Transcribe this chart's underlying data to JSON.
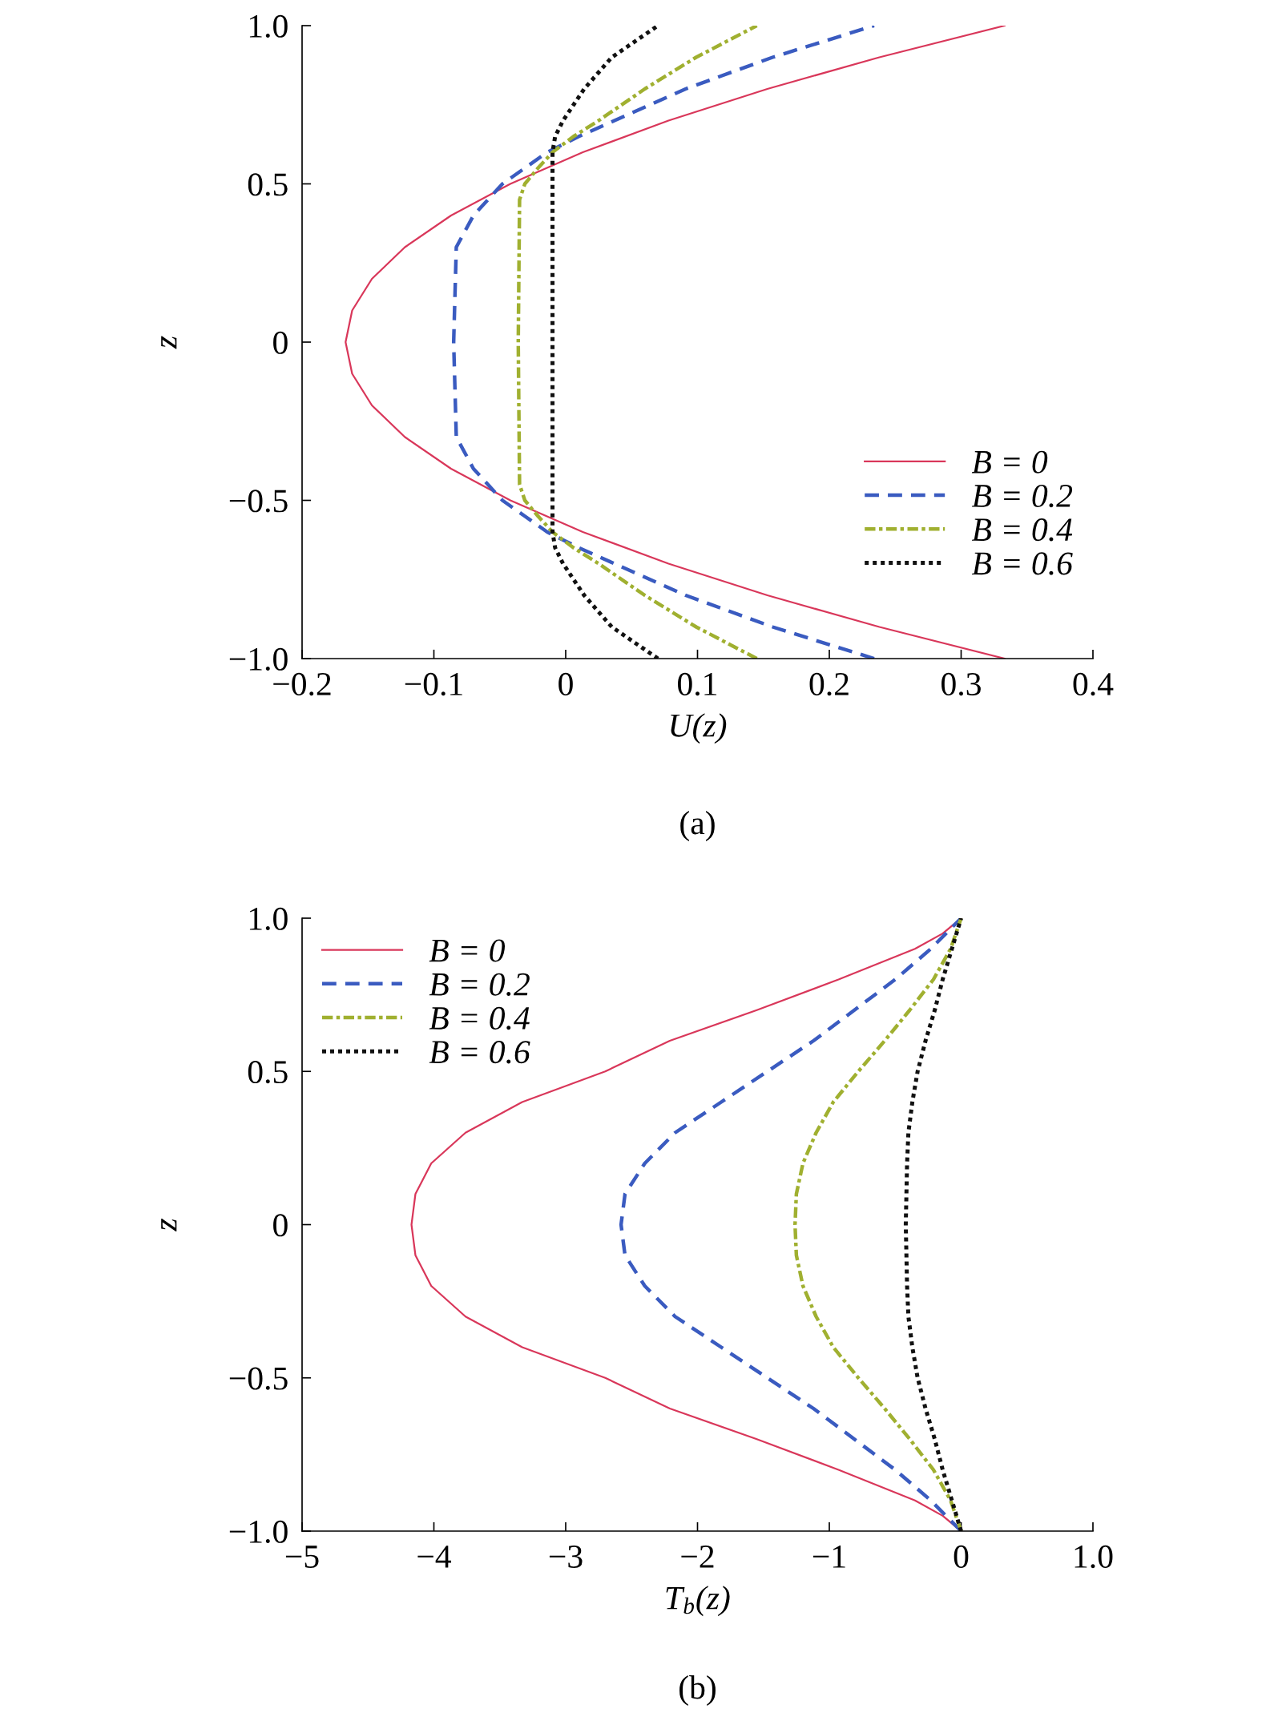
{
  "chart_data": [
    {
      "type": "line",
      "xlabel": "U(z)",
      "ylabel": "z",
      "annotations": [
        "(a)"
      ],
      "legend": "right",
      "grid": false,
      "xlim": [
        -0.2,
        0.4
      ],
      "ylim": [
        -1.0,
        1.0
      ],
      "xticks": [
        {
          "value": -0.2,
          "label": "−0.2"
        },
        {
          "value": -0.1,
          "label": "−0.1"
        },
        0,
        0.1,
        0.2,
        0.3,
        0.4
      ],
      "yticks": [
        {
          "value": -1.0,
          "label": "−1.0"
        },
        {
          "value": -0.5,
          "label": "−0.5"
        },
        0,
        0.5,
        {
          "value": 1.0,
          "label": "1.0"
        }
      ],
      "series": [
        {
          "name": "B = 0",
          "color": "#d9375a",
          "line_style": "solid",
          "x": [
            0.333,
            0.238,
            0.153,
            0.078,
            0.013,
            -0.042,
            -0.087,
            -0.122,
            -0.147,
            -0.162,
            -0.167,
            -0.162,
            -0.147,
            -0.122,
            -0.087,
            -0.042,
            0.013,
            0.078,
            0.153,
            0.238,
            0.333
          ],
          "values": [
            -1.0,
            -0.9,
            -0.8,
            -0.7,
            -0.6,
            -0.5,
            -0.4,
            -0.3,
            -0.2,
            -0.1,
            0,
            0.1,
            0.2,
            0.3,
            0.4,
            0.5,
            0.6,
            0.7,
            0.8,
            0.9,
            1.0
          ]
        },
        {
          "name": "B = 0.2",
          "color": "#3a5bc0",
          "line_style": "dashed",
          "x": [
            0.234,
            0.157,
            0.091,
            0.037,
            0.01,
            -0.014,
            -0.031,
            -0.048,
            -0.07,
            -0.083,
            -0.085,
            -0.083,
            -0.07,
            -0.048,
            -0.031,
            -0.014,
            0.01,
            0.037,
            0.091,
            0.157,
            0.234
          ],
          "values": [
            -1.0,
            -0.9,
            -0.8,
            -0.7,
            -0.65,
            -0.6,
            -0.55,
            -0.5,
            -0.4,
            -0.3,
            0,
            0.3,
            0.4,
            0.5,
            0.55,
            0.6,
            0.65,
            0.7,
            0.8,
            0.9,
            1.0
          ]
        },
        {
          "name": "B = 0.4",
          "color": "#a0b030",
          "line_style": "dashdot",
          "x": [
            0.145,
            0.099,
            0.06,
            0.025,
            0.006,
            -0.01,
            -0.021,
            -0.031,
            -0.035,
            -0.036,
            -0.035,
            -0.031,
            -0.021,
            -0.01,
            0.006,
            0.025,
            0.06,
            0.099,
            0.145
          ],
          "values": [
            -1.0,
            -0.9,
            -0.8,
            -0.7,
            -0.65,
            -0.6,
            -0.55,
            -0.5,
            -0.45,
            0,
            0.45,
            0.5,
            0.55,
            0.6,
            0.65,
            0.7,
            0.8,
            0.9,
            1.0
          ]
        },
        {
          "name": "B = 0.6",
          "color": "#111111",
          "line_style": "dotted",
          "x": [
            0.07,
            0.035,
            0.014,
            -0.002,
            -0.008,
            -0.01,
            -0.01,
            -0.01,
            -0.008,
            -0.002,
            0.014,
            0.035,
            0.07
          ],
          "values": [
            -1.0,
            -0.9,
            -0.8,
            -0.7,
            -0.65,
            -0.6,
            0,
            0.6,
            0.65,
            0.7,
            0.8,
            0.9,
            1.0
          ]
        }
      ]
    },
    {
      "type": "line",
      "xlabel": "T$_{b}$(z)",
      "ylabel": "z",
      "annotations": [
        "(b)"
      ],
      "legend": "top left",
      "grid": false,
      "xlim": [
        -5,
        1.0
      ],
      "ylim": [
        -1.0,
        1.0
      ],
      "xticks": [
        {
          "value": -5,
          "label": "−5"
        },
        {
          "value": -4,
          "label": "−4"
        },
        {
          "value": -3,
          "label": "−3"
        },
        {
          "value": -2,
          "label": "−2"
        },
        {
          "value": -1,
          "label": "−1"
        },
        0,
        {
          "value": 1.0,
          "label": "1.0"
        }
      ],
      "yticks": [
        {
          "value": -1.0,
          "label": "−1.0"
        },
        {
          "value": -0.5,
          "label": "−0.5"
        },
        0,
        0.5,
        {
          "value": 1.0,
          "label": "1.0"
        }
      ],
      "series": [
        {
          "name": "B = 0",
          "color": "#d9375a",
          "line_style": "solid",
          "x": [
            0,
            -0.14,
            -0.35,
            -0.93,
            -1.55,
            -2.21,
            -2.7,
            -3.33,
            -3.76,
            -4.02,
            -4.14,
            -4.17,
            -4.14,
            -4.02,
            -3.76,
            -3.33,
            -2.7,
            -2.21,
            -1.55,
            -0.93,
            -0.35,
            -0.14,
            0
          ],
          "values": [
            -1.0,
            -0.95,
            -0.9,
            -0.8,
            -0.7,
            -0.6,
            -0.5,
            -0.4,
            -0.3,
            -0.2,
            -0.1,
            0,
            0.1,
            0.2,
            0.3,
            0.4,
            0.5,
            0.6,
            0.7,
            0.8,
            0.9,
            0.95,
            1.0
          ]
        },
        {
          "name": "B = 0.2",
          "color": "#3a5bc0",
          "line_style": "dashed",
          "x": [
            0,
            -0.23,
            -0.5,
            -0.81,
            -1.12,
            -1.47,
            -1.82,
            -2.17,
            -2.4,
            -2.55,
            -2.58,
            -2.55,
            -2.4,
            -2.17,
            -1.82,
            -1.47,
            -1.12,
            -0.81,
            -0.5,
            -0.23,
            0
          ],
          "values": [
            -1.0,
            -0.9,
            -0.8,
            -0.7,
            -0.6,
            -0.5,
            -0.4,
            -0.3,
            -0.2,
            -0.1,
            0,
            0.1,
            0.2,
            0.3,
            0.4,
            0.5,
            0.6,
            0.7,
            0.8,
            0.9,
            1.0
          ]
        },
        {
          "name": "B = 0.4",
          "color": "#a0b030",
          "line_style": "dashdot",
          "x": [
            0,
            -0.08,
            -0.21,
            -0.39,
            -0.58,
            -0.78,
            -0.97,
            -1.1,
            -1.2,
            -1.25,
            -1.26,
            -1.25,
            -1.2,
            -1.1,
            -0.97,
            -0.78,
            -0.58,
            -0.39,
            -0.21,
            -0.08,
            0
          ],
          "values": [
            -1.0,
            -0.9,
            -0.8,
            -0.7,
            -0.6,
            -0.5,
            -0.4,
            -0.3,
            -0.2,
            -0.1,
            0,
            0.1,
            0.2,
            0.3,
            0.4,
            0.5,
            0.6,
            0.7,
            0.8,
            0.9,
            1.0
          ]
        },
        {
          "name": "B = 0.6",
          "color": "#111111",
          "line_style": "dotted",
          "x": [
            0,
            -0.07,
            -0.14,
            -0.2,
            -0.27,
            -0.33,
            -0.37,
            -0.4,
            -0.41,
            -0.42,
            -0.41,
            -0.4,
            -0.37,
            -0.33,
            -0.27,
            -0.2,
            -0.14,
            -0.07,
            0
          ],
          "values": [
            -1.0,
            -0.9,
            -0.8,
            -0.7,
            -0.6,
            -0.5,
            -0.4,
            -0.3,
            -0.2,
            0,
            0.2,
            0.3,
            0.4,
            0.5,
            0.6,
            0.7,
            0.8,
            0.9,
            1.0
          ]
        }
      ]
    }
  ]
}
